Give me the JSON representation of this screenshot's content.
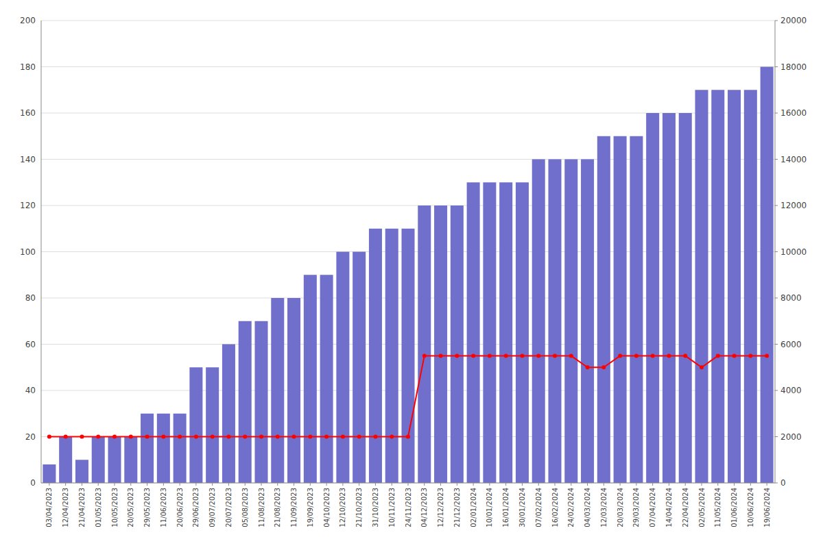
{
  "chart_data": {
    "type": "bar",
    "categories": [
      "03/04/2023",
      "12/04/2023",
      "21/04/2023",
      "01/05/2023",
      "10/05/2023",
      "20/05/2023",
      "29/05/2023",
      "11/06/2023",
      "20/06/2023",
      "29/06/2023",
      "09/07/2023",
      "20/07/2023",
      "05/08/2023",
      "11/08/2023",
      "21/08/2023",
      "11/09/2023",
      "19/09/2023",
      "04/10/2023",
      "12/10/2023",
      "21/10/2023",
      "31/10/2023",
      "10/11/2023",
      "24/11/2023",
      "04/12/2023",
      "12/12/2023",
      "21/12/2023",
      "02/01/2024",
      "10/01/2024",
      "16/01/2024",
      "30/01/2024",
      "07/02/2024",
      "16/02/2024",
      "24/02/2024",
      "04/03/2024",
      "12/03/2024",
      "20/03/2024",
      "29/03/2024",
      "07/04/2024",
      "14/04/2024",
      "22/04/2024",
      "02/05/2024",
      "11/05/2024",
      "01/06/2024",
      "10/06/2024",
      "19/06/2024"
    ],
    "series": [
      {
        "type": "bar",
        "color": "#7070cc",
        "axis": "y2",
        "values": [
          800,
          2000,
          1000,
          2000,
          2000,
          2000,
          3000,
          3000,
          3000,
          5000,
          5000,
          6000,
          7000,
          7000,
          8000,
          8000,
          9000,
          9000,
          10000,
          10000,
          11000,
          11000,
          11000,
          12000,
          12000,
          12000,
          13000,
          13000,
          13000,
          13000,
          14000,
          14000,
          14000,
          14000,
          15000,
          15000,
          15000,
          16000,
          16000,
          16000,
          17000,
          17000,
          17000,
          17000,
          18000
        ]
      },
      {
        "type": "line",
        "color": "#ff0000",
        "marker": "circle",
        "values": [
          20,
          20,
          20,
          20,
          20,
          20,
          20,
          20,
          20,
          20,
          20,
          20,
          20,
          20,
          20,
          20,
          20,
          20,
          20,
          20,
          20,
          20,
          20,
          55,
          55,
          55,
          55,
          55,
          55,
          55,
          55,
          55,
          55,
          50,
          50,
          55,
          55,
          55,
          55,
          55,
          50,
          55,
          55,
          55,
          55
        ]
      }
    ],
    "ylim": [
      0,
      200
    ],
    "yticks": [
      0,
      20,
      40,
      60,
      80,
      100,
      120,
      140,
      160,
      180,
      200
    ],
    "y2lim": [
      0,
      20000
    ],
    "y2ticks": [
      0,
      2000,
      4000,
      6000,
      8000,
      10000,
      12000,
      14000,
      16000,
      18000,
      20000
    ],
    "grid": true
  }
}
